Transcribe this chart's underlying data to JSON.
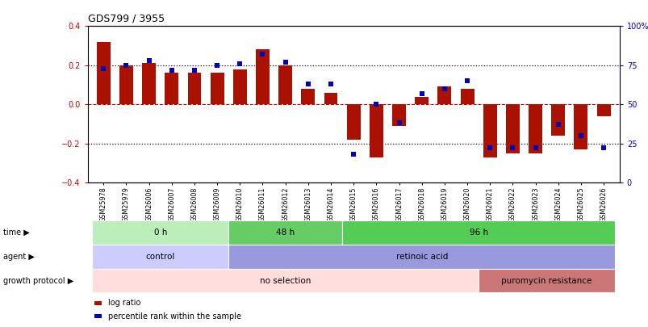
{
  "title": "GDS799 / 3955",
  "samples": [
    "GSM25978",
    "GSM25979",
    "GSM26006",
    "GSM26007",
    "GSM26008",
    "GSM26009",
    "GSM26010",
    "GSM26011",
    "GSM26012",
    "GSM26013",
    "GSM26014",
    "GSM26015",
    "GSM26016",
    "GSM26017",
    "GSM26018",
    "GSM26019",
    "GSM26020",
    "GSM26021",
    "GSM26022",
    "GSM26023",
    "GSM26024",
    "GSM26025",
    "GSM26026"
  ],
  "log_ratio": [
    0.32,
    0.2,
    0.21,
    0.16,
    0.16,
    0.16,
    0.18,
    0.28,
    0.2,
    0.08,
    0.06,
    -0.18,
    -0.27,
    -0.11,
    0.04,
    0.09,
    0.08,
    -0.27,
    -0.25,
    -0.25,
    -0.16,
    -0.23,
    -0.06
  ],
  "percentile": [
    73,
    75,
    78,
    72,
    72,
    75,
    76,
    82,
    77,
    63,
    63,
    18,
    50,
    38,
    57,
    60,
    65,
    22,
    22,
    22,
    37,
    30,
    22
  ],
  "ylim": [
    -0.4,
    0.4
  ],
  "right_ylim": [
    0,
    100
  ],
  "dotted_lines_black": [
    0.2,
    -0.2
  ],
  "dashed_red_line": 0.0,
  "bar_color": "#aa1100",
  "dot_color": "#0000bb",
  "time_groups": [
    {
      "label": "0 h",
      "start": 0,
      "end": 6,
      "color": "#bbeebb"
    },
    {
      "label": "48 h",
      "start": 6,
      "end": 11,
      "color": "#66cc66"
    },
    {
      "label": "96 h",
      "start": 11,
      "end": 23,
      "color": "#55cc55"
    }
  ],
  "agent_groups": [
    {
      "label": "control",
      "start": 0,
      "end": 6,
      "color": "#ccccff"
    },
    {
      "label": "retinoic acid",
      "start": 6,
      "end": 23,
      "color": "#9999dd"
    }
  ],
  "growth_groups": [
    {
      "label": "no selection",
      "start": 0,
      "end": 17,
      "color": "#ffdddd"
    },
    {
      "label": "puromycin resistance",
      "start": 17,
      "end": 23,
      "color": "#cc7777"
    }
  ],
  "row_labels": [
    "time",
    "agent",
    "growth protocol"
  ],
  "legend_items": [
    {
      "color": "#aa1100",
      "label": "log ratio"
    },
    {
      "color": "#0000bb",
      "label": "percentile rank within the sample"
    }
  ],
  "right_ytick_labels": [
    "100%",
    "75",
    "50",
    "25",
    "0"
  ],
  "right_ytick_values": [
    100,
    75,
    50,
    25,
    0
  ],
  "left_ytick_values": [
    0.4,
    0.2,
    0.0,
    -0.2,
    -0.4
  ],
  "bar_width": 0.6,
  "xlim_left": -0.7,
  "xlim_right": 22.7
}
